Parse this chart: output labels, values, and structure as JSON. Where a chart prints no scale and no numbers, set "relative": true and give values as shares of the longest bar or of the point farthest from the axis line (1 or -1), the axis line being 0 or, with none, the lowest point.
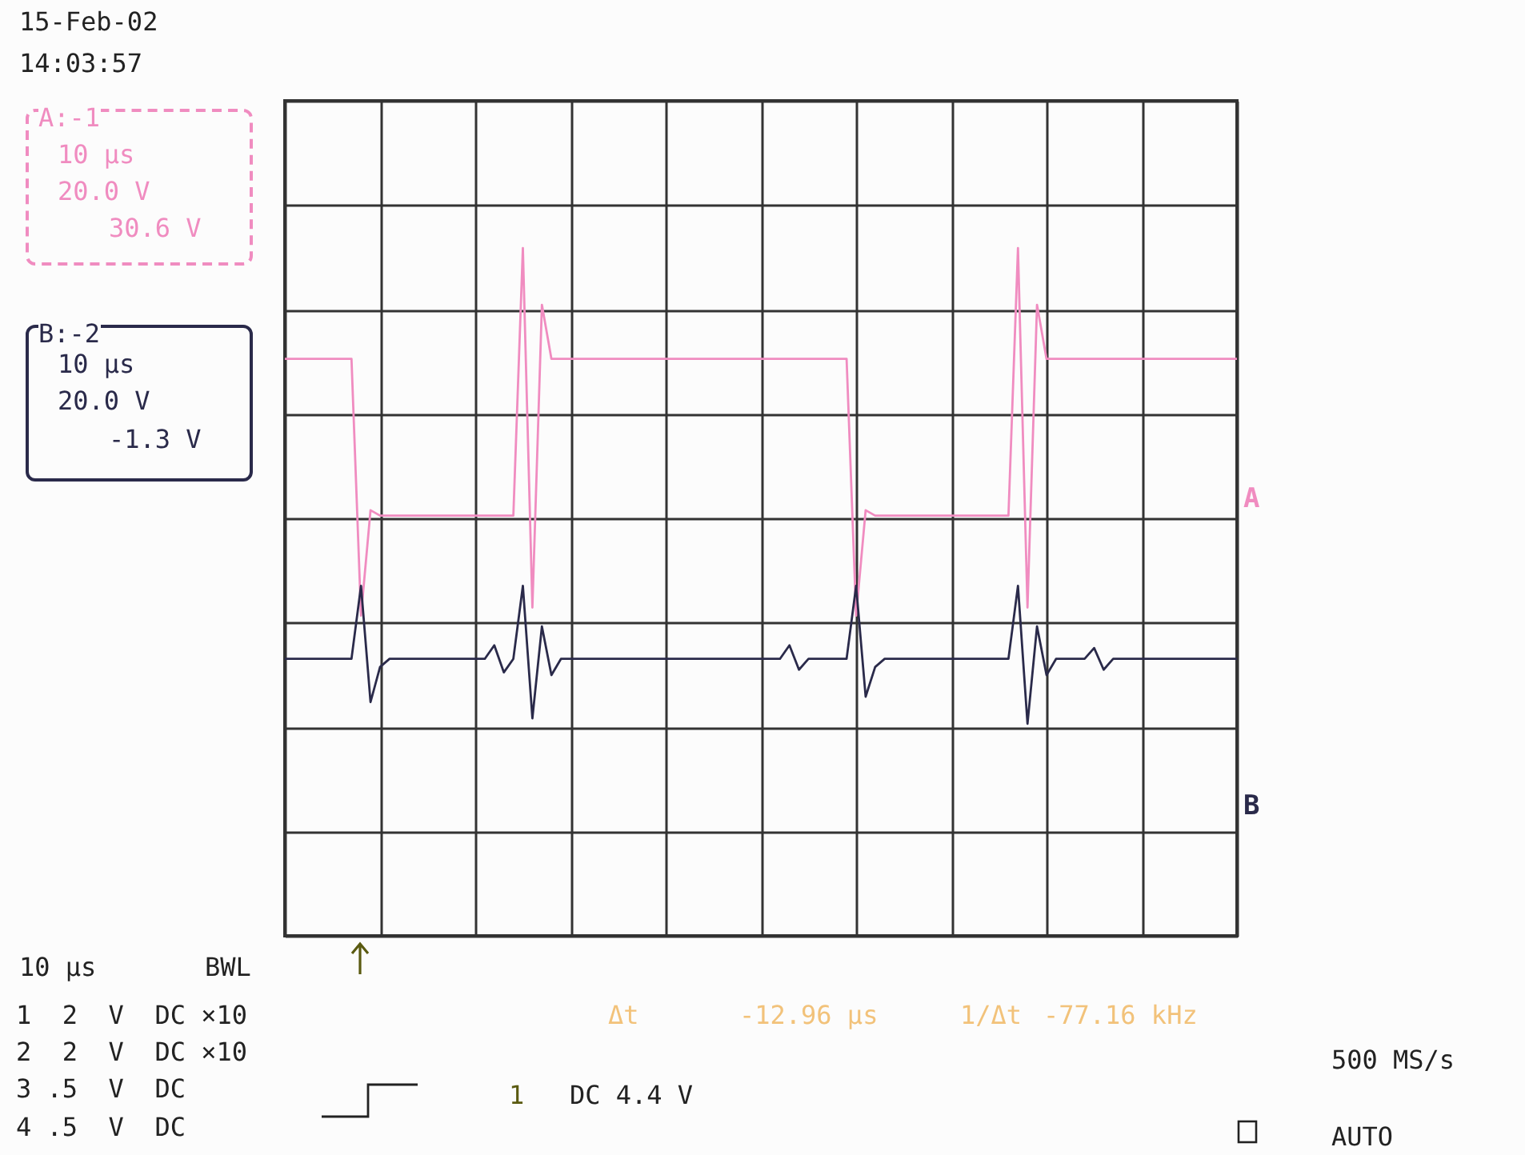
{
  "chart_data": {
    "type": "line",
    "relative": true,
    "grid": true,
    "categories": [
      null,
      null,
      null,
      null,
      null,
      null,
      null,
      null,
      null,
      null,
      null,
      null,
      null,
      null,
      null,
      null,
      null,
      null,
      null,
      null,
      null,
      null,
      null,
      null,
      null,
      null,
      null,
      null,
      null,
      null,
      null,
      null,
      null,
      null,
      null,
      null,
      null,
      null,
      null,
      null,
      null,
      null,
      null,
      null,
      null,
      null,
      null,
      null,
      null,
      null,
      null,
      null,
      null,
      null,
      null,
      null,
      null,
      null,
      null,
      null,
      null,
      null,
      null,
      null,
      null,
      null,
      null,
      null,
      null,
      null,
      null,
      null,
      null,
      null,
      null,
      null,
      null,
      null,
      null,
      null,
      null,
      null,
      null,
      null,
      null,
      null,
      null,
      null,
      null,
      null,
      null,
      null,
      null,
      null,
      null,
      null,
      null,
      null,
      null,
      null,
      null
    ],
    "series": [
      {
        "name": "A",
        "color": "#f08cc0",
        "values": [
          0.59,
          0.59,
          0.59,
          0.59,
          0.59,
          0.59,
          0.59,
          0.59,
          -0.36,
          0.03,
          0.01,
          0.01,
          0.01,
          0.01,
          0.01,
          0.01,
          0.01,
          0.01,
          0.01,
          0.01,
          0.01,
          0.01,
          0.01,
          0.01,
          0.01,
          1.0,
          -0.33,
          0.79,
          0.59,
          0.59,
          0.59,
          0.59,
          0.59,
          0.59,
          0.59,
          0.59,
          0.59,
          0.59,
          0.59,
          0.59,
          0.59,
          0.59,
          0.59,
          0.59,
          0.59,
          0.59,
          0.59,
          0.59,
          0.59,
          0.59,
          0.59,
          0.59,
          0.59,
          0.59,
          0.59,
          0.59,
          0.59,
          0.59,
          0.59,
          0.59,
          -0.36,
          0.03,
          0.01,
          0.01,
          0.01,
          0.01,
          0.01,
          0.01,
          0.01,
          0.01,
          0.01,
          0.01,
          0.01,
          0.01,
          0.01,
          0.01,
          0.01,
          1.0,
          -0.33,
          0.79,
          0.59,
          0.59,
          0.59,
          0.59,
          0.59,
          0.59,
          0.59,
          0.59,
          0.59,
          0.59,
          0.59,
          0.59,
          0.59,
          0.59,
          0.59,
          0.59,
          0.59,
          0.59,
          0.59,
          0.59,
          0.59
        ]
      },
      {
        "name": "B",
        "color": "#2a2a4a",
        "values": [
          -0.52,
          -0.52,
          -0.52,
          -0.52,
          -0.52,
          -0.52,
          -0.52,
          -0.52,
          -0.25,
          -0.68,
          -0.55,
          -0.52,
          -0.52,
          -0.52,
          -0.52,
          -0.52,
          -0.52,
          -0.52,
          -0.52,
          -0.52,
          -0.52,
          -0.52,
          -0.47,
          -0.57,
          -0.52,
          -0.25,
          -0.74,
          -0.4,
          -0.58,
          -0.52,
          -0.52,
          -0.52,
          -0.52,
          -0.52,
          -0.52,
          -0.52,
          -0.52,
          -0.52,
          -0.52,
          -0.52,
          -0.52,
          -0.52,
          -0.52,
          -0.52,
          -0.52,
          -0.52,
          -0.52,
          -0.52,
          -0.52,
          -0.52,
          -0.52,
          -0.52,
          -0.52,
          -0.47,
          -0.56,
          -0.52,
          -0.52,
          -0.52,
          -0.52,
          -0.52,
          -0.25,
          -0.66,
          -0.55,
          -0.52,
          -0.52,
          -0.52,
          -0.52,
          -0.52,
          -0.52,
          -0.52,
          -0.52,
          -0.52,
          -0.52,
          -0.52,
          -0.52,
          -0.52,
          -0.52,
          -0.25,
          -0.76,
          -0.4,
          -0.58,
          -0.52,
          -0.52,
          -0.52,
          -0.52,
          -0.48,
          -0.56,
          -0.52,
          -0.52,
          -0.52,
          -0.52,
          -0.52,
          -0.52,
          -0.52,
          -0.52,
          -0.52,
          -0.52,
          -0.52,
          -0.52,
          -0.52,
          -0.52
        ]
      }
    ],
    "annotations": [
      "15-Feb-02",
      "14:03:57",
      "A:-1",
      "10 μs",
      "20.0 V",
      "30.6 V",
      "B:-2",
      "10 μs",
      "20.0 V",
      "-1.3 V",
      "10 μs",
      "BWL",
      "1  2  V  DC ×10",
      "2  2  V  DC ×10",
      "3 .5  V  DC",
      "4 .5  V  DC",
      "Δt",
      "-12.96 μs",
      "1/Δt",
      "-77.16 kHz",
      "1",
      "DC 4.4 V",
      "500 MS/s",
      "AUTO"
    ]
  }
}
